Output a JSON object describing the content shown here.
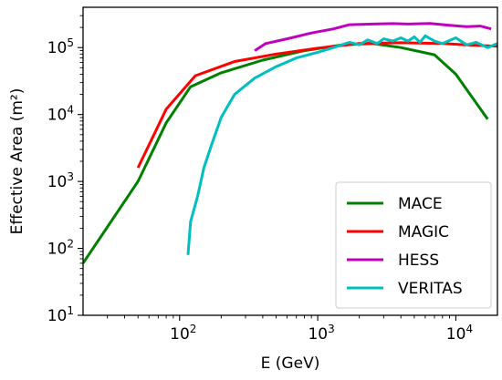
{
  "chart_data": {
    "type": "line",
    "title": "",
    "xlabel": "E (GeV)",
    "ylabel": "Effective Area (m²)",
    "xscale": "log",
    "yscale": "log",
    "xlim": [
      20,
      20000
    ],
    "ylim": [
      10,
      400000
    ],
    "grid": false,
    "legend_position": "bottom-right",
    "x_ticks": [
      {
        "value": 100,
        "base": "10",
        "exp": "2"
      },
      {
        "value": 1000,
        "base": "10",
        "exp": "3"
      },
      {
        "value": 10000,
        "base": "10",
        "exp": "4"
      }
    ],
    "y_ticks": [
      {
        "value": 10,
        "base": "10",
        "exp": "1"
      },
      {
        "value": 100,
        "base": "10",
        "exp": "2"
      },
      {
        "value": 1000,
        "base": "10",
        "exp": "3"
      },
      {
        "value": 10000,
        "base": "10",
        "exp": "4"
      },
      {
        "value": 100000,
        "base": "10",
        "exp": "5"
      }
    ],
    "series": [
      {
        "name": "MACE",
        "color": "#008000",
        "points": [
          [
            20,
            60
          ],
          [
            50,
            1000
          ],
          [
            80,
            7500
          ],
          [
            120,
            26000
          ],
          [
            200,
            42000
          ],
          [
            400,
            65000
          ],
          [
            800,
            90000
          ],
          [
            1500,
            110000
          ],
          [
            2500,
            115000
          ],
          [
            4000,
            100000
          ],
          [
            7000,
            78000
          ],
          [
            10000,
            40000
          ],
          [
            17000,
            8500
          ]
        ]
      },
      {
        "name": "MAGIC",
        "color": "#ff0000",
        "points": [
          [
            50,
            1600
          ],
          [
            80,
            12000
          ],
          [
            130,
            38000
          ],
          [
            250,
            62000
          ],
          [
            500,
            80000
          ],
          [
            1000,
            98000
          ],
          [
            2000,
            115000
          ],
          [
            4000,
            118000
          ],
          [
            8000,
            115000
          ],
          [
            14000,
            108000
          ],
          [
            20000,
            105000
          ]
        ]
      },
      {
        "name": "HESS",
        "color": "#bf00bf",
        "points": [
          [
            350,
            90000
          ],
          [
            420,
            115000
          ],
          [
            600,
            135000
          ],
          [
            900,
            165000
          ],
          [
            1300,
            190000
          ],
          [
            1700,
            220000
          ],
          [
            2500,
            225000
          ],
          [
            3500,
            228000
          ],
          [
            4500,
            225000
          ],
          [
            6500,
            230000
          ],
          [
            9000,
            215000
          ],
          [
            12000,
            205000
          ],
          [
            15000,
            210000
          ],
          [
            18000,
            190000
          ]
        ]
      },
      {
        "name": "VERITAS",
        "color": "#00bfbf",
        "points": [
          [
            115,
            80
          ],
          [
            120,
            250
          ],
          [
            135,
            600
          ],
          [
            150,
            1600
          ],
          [
            170,
            3500
          ],
          [
            200,
            9000
          ],
          [
            250,
            20000
          ],
          [
            350,
            35000
          ],
          [
            500,
            52000
          ],
          [
            700,
            70000
          ],
          [
            1000,
            85000
          ],
          [
            1300,
            100000
          ],
          [
            1700,
            120000
          ],
          [
            2000,
            110000
          ],
          [
            2300,
            130000
          ],
          [
            2700,
            115000
          ],
          [
            3000,
            135000
          ],
          [
            3500,
            125000
          ],
          [
            4000,
            140000
          ],
          [
            4500,
            125000
          ],
          [
            5000,
            145000
          ],
          [
            5500,
            120000
          ],
          [
            6000,
            150000
          ],
          [
            7000,
            125000
          ],
          [
            8000,
            115000
          ],
          [
            10000,
            140000
          ],
          [
            12000,
            110000
          ],
          [
            14000,
            120000
          ],
          [
            17000,
            100000
          ],
          [
            20000,
            115000
          ]
        ]
      }
    ]
  }
}
